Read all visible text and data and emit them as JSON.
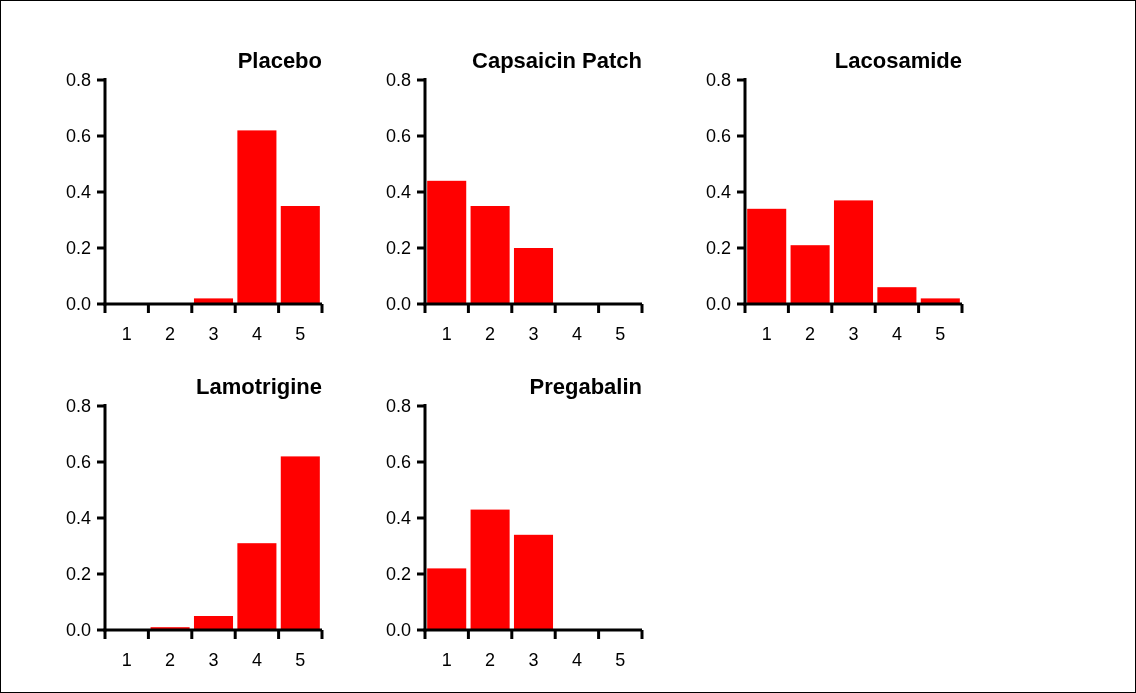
{
  "chart_data": [
    {
      "type": "bar",
      "title": "Placebo",
      "categories": [
        "1",
        "2",
        "3",
        "4",
        "5"
      ],
      "values": [
        0,
        0,
        0.02,
        0.62,
        0.35
      ],
      "color": "#ff0000",
      "ylim": [
        0,
        0.8
      ],
      "yticks": [
        {
          "value": 0,
          "label": "0.0"
        },
        {
          "value": 0.2,
          "label": "0.2"
        },
        {
          "value": 0.4,
          "label": "0.4"
        },
        {
          "value": 0.6,
          "label": "0.6"
        },
        {
          "value": 0.8,
          "label": "0.8"
        }
      ]
    },
    {
      "type": "bar",
      "title": "Capsaicin Patch",
      "categories": [
        "1",
        "2",
        "3",
        "4",
        "5"
      ],
      "values": [
        0.44,
        0.35,
        0.2,
        0,
        0
      ],
      "color": "#ff0000",
      "ylim": [
        0,
        0.8
      ],
      "yticks": [
        {
          "value": 0,
          "label": "0.0"
        },
        {
          "value": 0.2,
          "label": "0.2"
        },
        {
          "value": 0.4,
          "label": "0.4"
        },
        {
          "value": 0.6,
          "label": "0.6"
        },
        {
          "value": 0.8,
          "label": "0.8"
        }
      ]
    },
    {
      "type": "bar",
      "title": "Lacosamide",
      "categories": [
        "1",
        "2",
        "3",
        "4",
        "5"
      ],
      "values": [
        0.34,
        0.21,
        0.37,
        0.06,
        0.02
      ],
      "color": "#ff0000",
      "ylim": [
        0,
        0.8
      ],
      "yticks": [
        {
          "value": 0,
          "label": "0.0"
        },
        {
          "value": 0.2,
          "label": "0.2"
        },
        {
          "value": 0.4,
          "label": "0.4"
        },
        {
          "value": 0.6,
          "label": "0.6"
        },
        {
          "value": 0.8,
          "label": "0.8"
        }
      ]
    },
    {
      "type": "bar",
      "title": "Lamotrigine",
      "categories": [
        "1",
        "2",
        "3",
        "4",
        "5"
      ],
      "values": [
        0,
        0.01,
        0.05,
        0.31,
        0.62
      ],
      "color": "#ff0000",
      "ylim": [
        0,
        0.8
      ],
      "yticks": [
        {
          "value": 0,
          "label": "0.0"
        },
        {
          "value": 0.2,
          "label": "0.2"
        },
        {
          "value": 0.4,
          "label": "0.4"
        },
        {
          "value": 0.6,
          "label": "0.6"
        },
        {
          "value": 0.8,
          "label": "0.8"
        }
      ]
    },
    {
      "type": "bar",
      "title": "Pregabalin",
      "categories": [
        "1",
        "2",
        "3",
        "4",
        "5"
      ],
      "values": [
        0.22,
        0.43,
        0.34,
        0,
        0
      ],
      "color": "#ff0000",
      "ylim": [
        0,
        0.8
      ],
      "yticks": [
        {
          "value": 0,
          "label": "0.0"
        },
        {
          "value": 0.2,
          "label": "0.2"
        },
        {
          "value": 0.4,
          "label": "0.4"
        },
        {
          "value": 0.6,
          "label": "0.6"
        },
        {
          "value": 0.8,
          "label": "0.8"
        }
      ]
    }
  ]
}
